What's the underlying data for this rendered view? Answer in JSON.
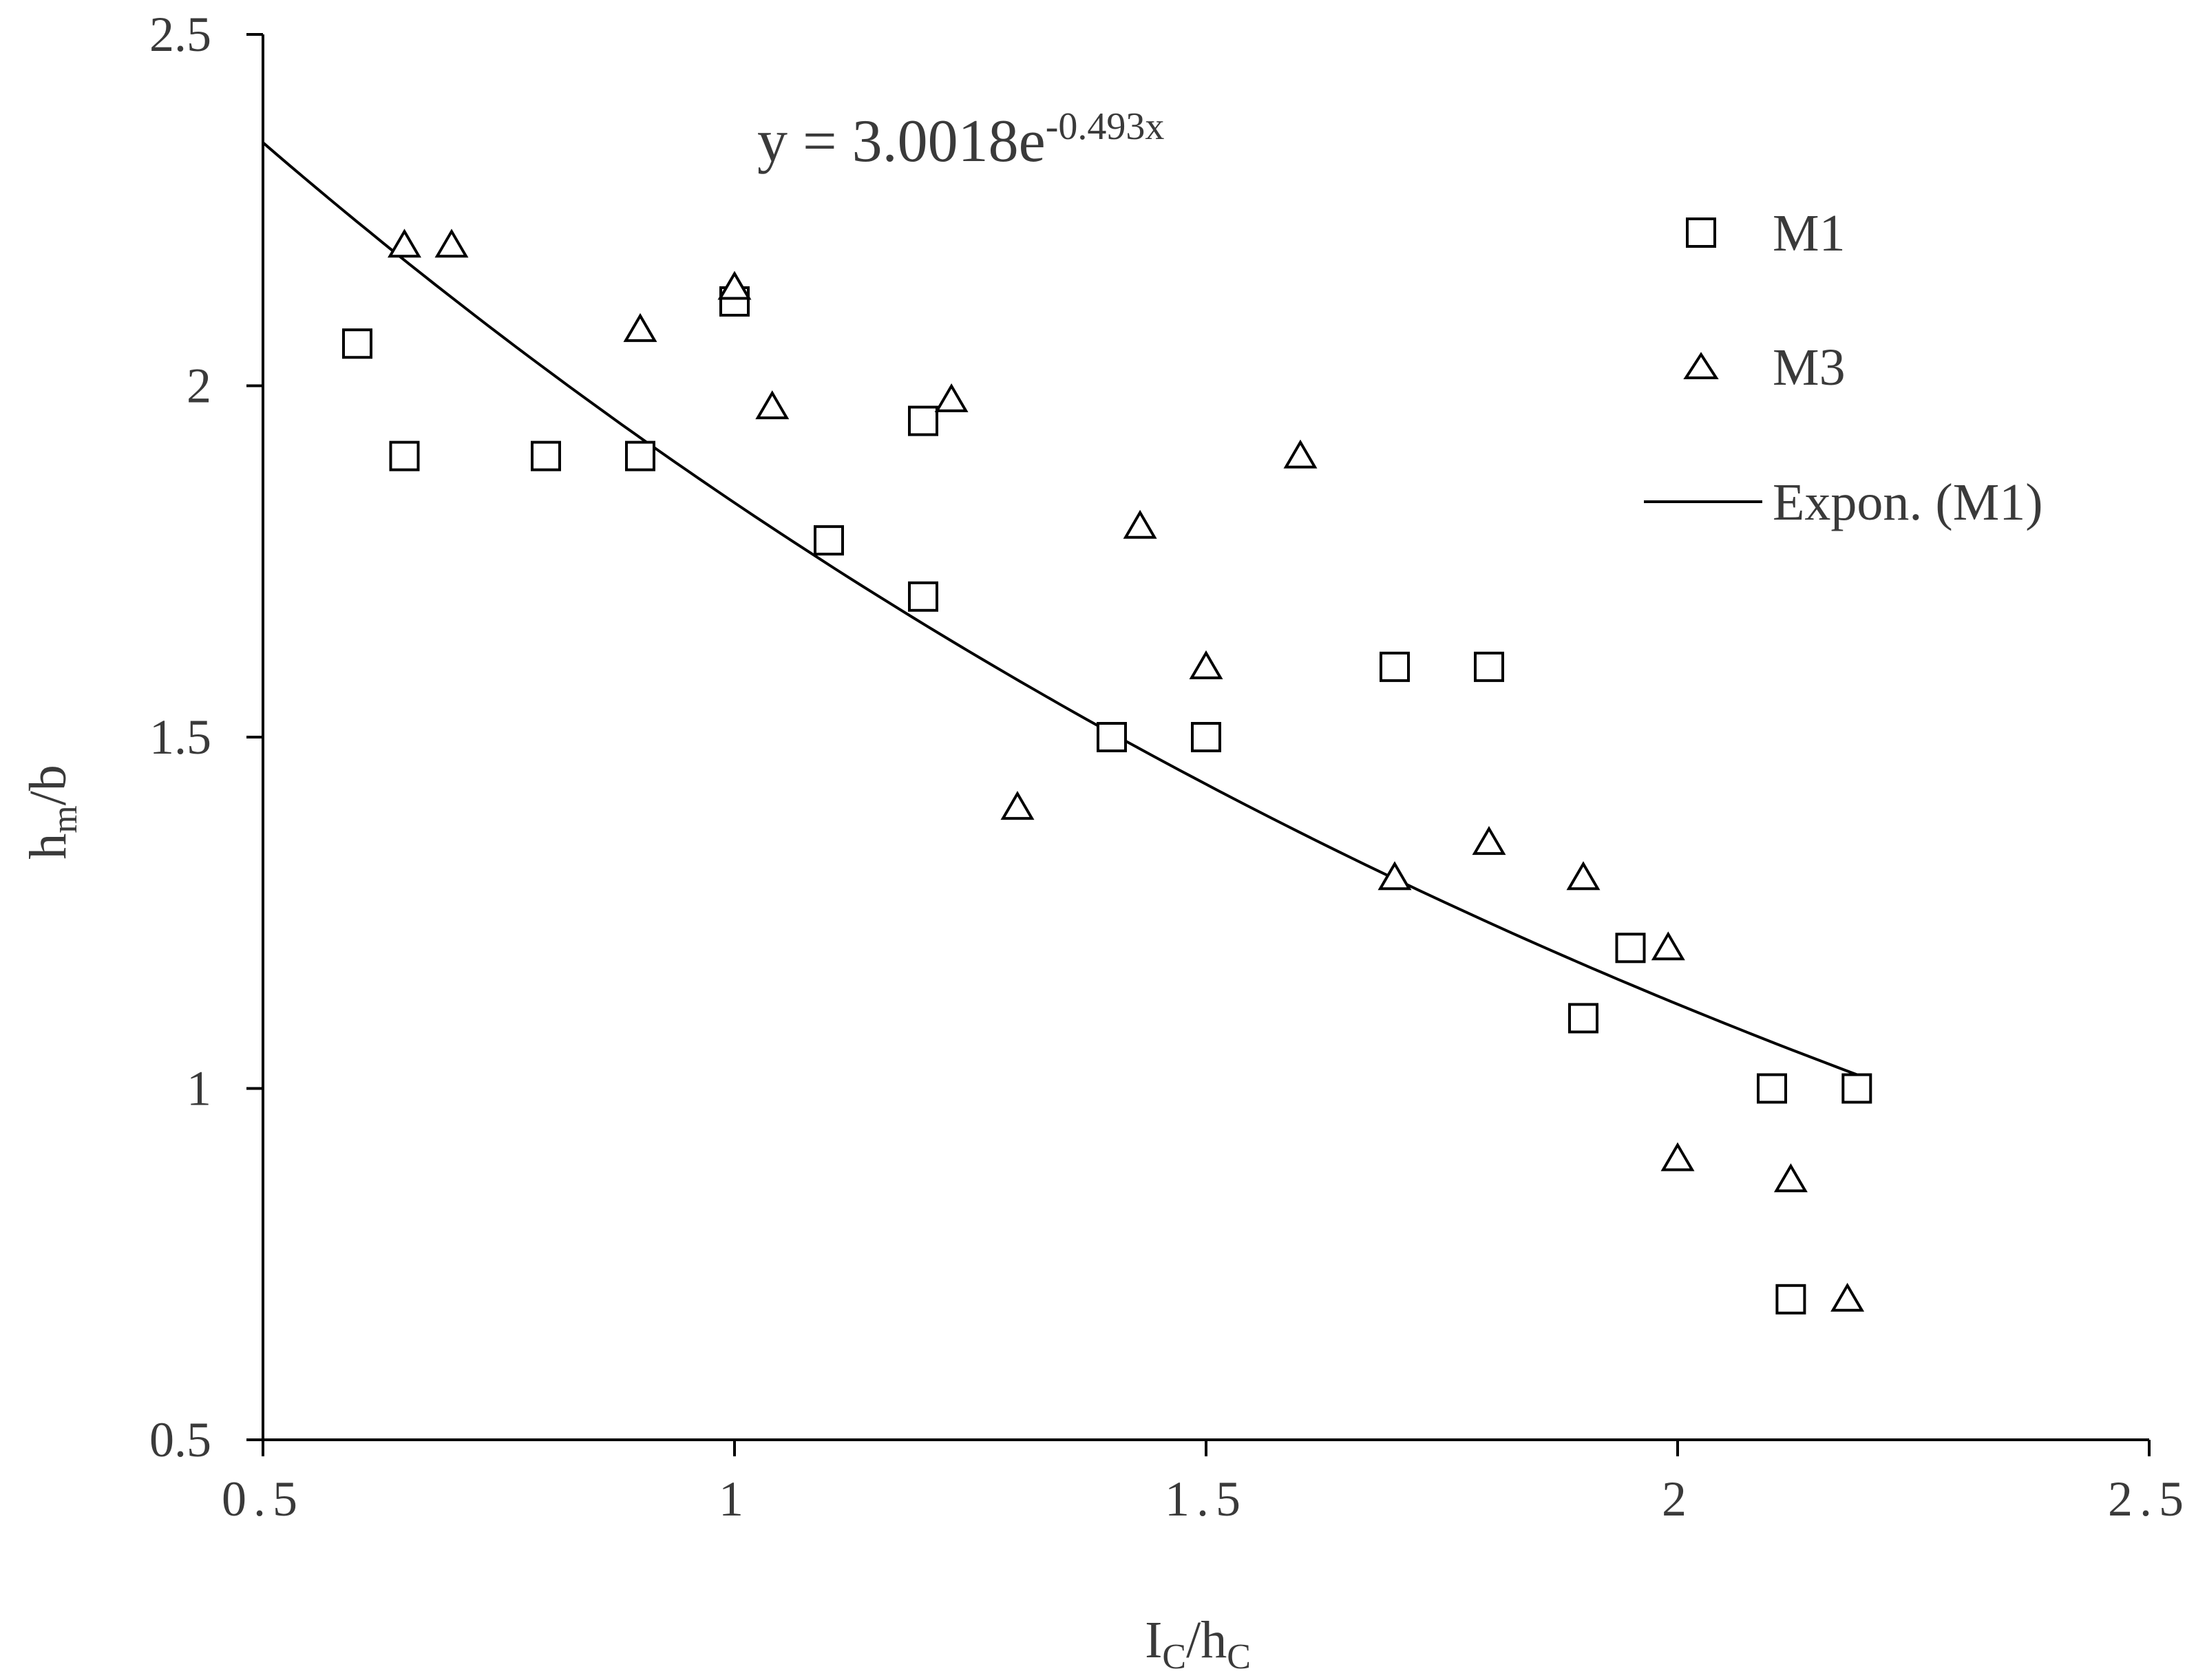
{
  "chart_data": {
    "type": "scatter",
    "title": "",
    "xlabel": {
      "main": "I",
      "sub1": "C",
      "mid": "/h",
      "sub2": "C"
    },
    "ylabel": {
      "main": "h",
      "sub": "m",
      "rest": "/b"
    },
    "xlim": [
      0.5,
      2.5
    ],
    "ylim": [
      0.5,
      2.5
    ],
    "x_ticks": [
      {
        "value": 0.5,
        "label": "0.5"
      },
      {
        "value": 1,
        "label": "1"
      },
      {
        "value": 1.5,
        "label": "1.5"
      },
      {
        "value": 2,
        "label": "2"
      },
      {
        "value": 2.5,
        "label": "2.5"
      }
    ],
    "y_ticks": [
      {
        "value": 0.5,
        "label": "0.5"
      },
      {
        "value": 1,
        "label": "1"
      },
      {
        "value": 1.5,
        "label": "1.5"
      },
      {
        "value": 2,
        "label": "2"
      },
      {
        "value": 2.5,
        "label": "2.5"
      }
    ],
    "grid": false,
    "legend_position": "top-right",
    "series": [
      {
        "name": "M1",
        "marker": "square",
        "points": [
          [
            0.6,
            2.06
          ],
          [
            0.65,
            1.9
          ],
          [
            0.8,
            1.9
          ],
          [
            0.9,
            1.9
          ],
          [
            1.0,
            2.12
          ],
          [
            1.1,
            1.78
          ],
          [
            1.2,
            1.95
          ],
          [
            1.2,
            1.7
          ],
          [
            1.4,
            1.5
          ],
          [
            1.5,
            1.5
          ],
          [
            1.7,
            1.6
          ],
          [
            1.8,
            1.6
          ],
          [
            1.9,
            1.1
          ],
          [
            1.95,
            1.2
          ],
          [
            2.1,
            1.0
          ],
          [
            2.19,
            1.0
          ],
          [
            2.12,
            0.7
          ]
        ]
      },
      {
        "name": "M3",
        "marker": "triangle",
        "points": [
          [
            0.65,
            2.2
          ],
          [
            0.7,
            2.2
          ],
          [
            0.9,
            2.08
          ],
          [
            1.0,
            2.14
          ],
          [
            1.04,
            1.97
          ],
          [
            1.23,
            1.98
          ],
          [
            1.3,
            1.4
          ],
          [
            1.43,
            1.8
          ],
          [
            1.5,
            1.6
          ],
          [
            1.6,
            1.9
          ],
          [
            1.7,
            1.3
          ],
          [
            1.8,
            1.35
          ],
          [
            1.9,
            1.3
          ],
          [
            1.99,
            1.2
          ],
          [
            2.0,
            0.9
          ],
          [
            2.12,
            0.87
          ],
          [
            2.18,
            0.7
          ]
        ]
      }
    ],
    "trendline": {
      "name": "Expon. (M1)",
      "type": "exponential",
      "coefficient": 3.0018,
      "exponent": -0.493,
      "x_range": [
        0.5,
        2.19
      ]
    },
    "equation": {
      "prefix": "y = 3.0018e",
      "superscript": "-0.493x"
    },
    "legend": [
      {
        "label": "M1",
        "marker": "square"
      },
      {
        "label": "M3",
        "marker": "triangle"
      },
      {
        "label": "Expon. (M1)",
        "marker": "line"
      }
    ]
  },
  "colors": {
    "ink": "#000000",
    "text": "#3a3a3a",
    "background": "#ffffff"
  }
}
